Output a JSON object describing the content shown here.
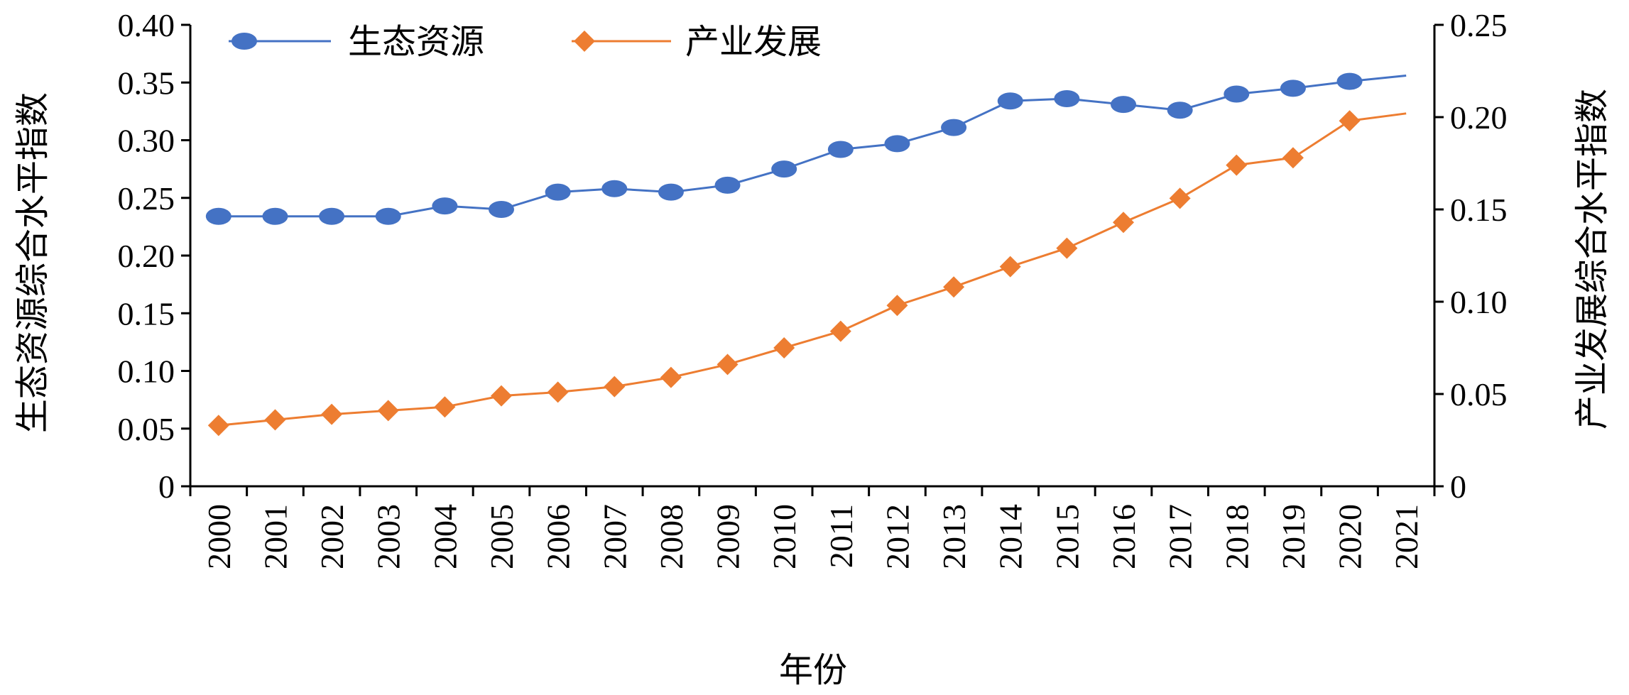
{
  "chart_data": {
    "type": "line",
    "title": "",
    "xlabel": "年份",
    "ylabel_left": "生态资源综合水平指数",
    "ylabel_right": "产业发展综合水平指数",
    "categories": [
      "2000",
      "2001",
      "2002",
      "2003",
      "2004",
      "2005",
      "2006",
      "2007",
      "2008",
      "2009",
      "2010",
      "2011",
      "2012",
      "2013",
      "2014",
      "2015",
      "2016",
      "2017",
      "2018",
      "2019",
      "2020",
      "2021"
    ],
    "ylim_left": [
      0,
      0.4
    ],
    "ylim_right": [
      0,
      0.25
    ],
    "yticks_left": [
      "0",
      "0.05",
      "0.10",
      "0.15",
      "0.20",
      "0.25",
      "0.30",
      "0.35",
      "0.40"
    ],
    "yticks_right": [
      "0",
      "0.05",
      "0.10",
      "0.15",
      "0.20",
      "0.25"
    ],
    "grid": false,
    "legend_position": "top-left",
    "series": [
      {
        "name": "生态资源",
        "axis": "left",
        "color": "#4472C4",
        "marker": "circle",
        "values": [
          0.234,
          0.234,
          0.234,
          0.234,
          0.243,
          0.24,
          0.255,
          0.258,
          0.255,
          0.261,
          0.275,
          0.292,
          0.297,
          0.311,
          0.334,
          0.336,
          0.331,
          0.326,
          0.34,
          0.345,
          0.351,
          0.356
        ]
      },
      {
        "name": "产业发展",
        "axis": "right",
        "color": "#ED7D31",
        "marker": "diamond",
        "values": [
          0.033,
          0.036,
          0.039,
          0.041,
          0.043,
          0.049,
          0.051,
          0.054,
          0.059,
          0.066,
          0.075,
          0.084,
          0.098,
          0.108,
          0.119,
          0.129,
          0.143,
          0.156,
          0.174,
          0.178,
          0.198,
          0.202
        ]
      }
    ]
  }
}
